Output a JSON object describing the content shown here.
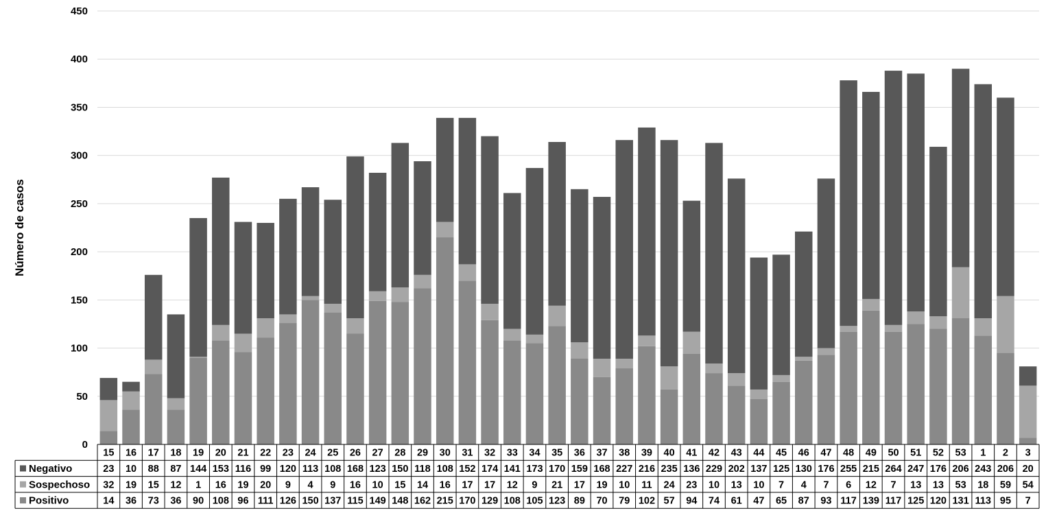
{
  "chart_data": {
    "type": "bar",
    "stacked": true,
    "title": "",
    "xlabel": "",
    "ylabel": "Número de casos",
    "ylim": [
      0,
      450
    ],
    "yticks": [
      0,
      50,
      100,
      150,
      200,
      250,
      300,
      350,
      400,
      450
    ],
    "grid": true,
    "legend": "data-table-left",
    "categories": [
      "15",
      "16",
      "17",
      "18",
      "19",
      "20",
      "21",
      "22",
      "23",
      "24",
      "25",
      "26",
      "27",
      "28",
      "29",
      "30",
      "31",
      "32",
      "33",
      "34",
      "35",
      "36",
      "37",
      "38",
      "39",
      "40",
      "41",
      "42",
      "43",
      "44",
      "45",
      "46",
      "47",
      "48",
      "49",
      "50",
      "51",
      "52",
      "53",
      "1",
      "2",
      "3"
    ],
    "series": [
      {
        "name": "Positivo",
        "color": "#898989",
        "values": [
          14,
          36,
          73,
          36,
          90,
          108,
          96,
          111,
          126,
          150,
          137,
          115,
          149,
          148,
          162,
          215,
          170,
          129,
          108,
          105,
          123,
          89,
          70,
          79,
          102,
          57,
          94,
          74,
          61,
          47,
          65,
          87,
          93,
          117,
          139,
          117,
          125,
          120,
          131,
          113,
          95,
          7
        ]
      },
      {
        "name": "Sospechoso",
        "color": "#a6a6a6",
        "values": [
          32,
          19,
          15,
          12,
          1,
          16,
          19,
          20,
          9,
          4,
          9,
          16,
          10,
          15,
          14,
          16,
          17,
          17,
          12,
          9,
          21,
          17,
          19,
          10,
          11,
          24,
          23,
          10,
          13,
          10,
          7,
          4,
          7,
          6,
          12,
          7,
          13,
          13,
          53,
          18,
          59,
          54
        ]
      },
      {
        "name": "Negativo",
        "color": "#585858",
        "values": [
          23,
          10,
          88,
          87,
          144,
          153,
          116,
          99,
          120,
          113,
          108,
          168,
          123,
          150,
          118,
          108,
          152,
          174,
          141,
          173,
          170,
          159,
          168,
          227,
          216,
          235,
          136,
          229,
          202,
          137,
          125,
          130,
          176,
          255,
          215,
          264,
          247,
          176,
          206,
          243,
          206,
          20
        ]
      }
    ]
  }
}
